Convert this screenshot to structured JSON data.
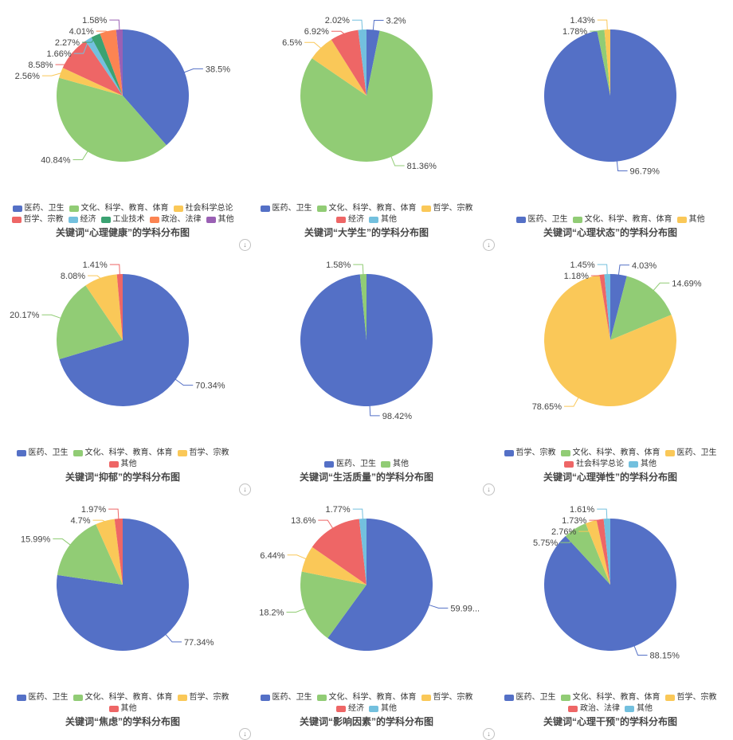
{
  "page": {
    "background": "#ffffff"
  },
  "palette": [
    "#5470c6",
    "#91cc75",
    "#fac858",
    "#ee6666",
    "#73c0de",
    "#3ba272",
    "#fc8452",
    "#9a60b4"
  ],
  "controls": {
    "download_icon": "↓"
  },
  "charts": [
    {
      "title": "关键词“心理健康”的学科分布图",
      "has_download_button": true,
      "chart_data": {
        "type": "pie",
        "series": [
          {
            "name": "医药、卫生",
            "value": 38.5,
            "label": "38.5%"
          },
          {
            "name": "文化、科学、教育、体育",
            "value": 40.84,
            "label": "40.84%"
          },
          {
            "name": "社会科学总论",
            "value": 2.56,
            "label": "2.56%"
          },
          {
            "name": "哲学、宗教",
            "value": 8.58,
            "label": "8.58%"
          },
          {
            "name": "经济",
            "value": 1.66,
            "label": "1.66%"
          },
          {
            "name": "工业技术",
            "value": 2.27,
            "label": "2.27%"
          },
          {
            "name": "政治、法律",
            "value": 4.01,
            "label": "4.01%"
          },
          {
            "name": "其他",
            "value": 1.58,
            "label": "1.58%"
          }
        ]
      }
    },
    {
      "title": "关键词“大学生”的学科分布图",
      "has_download_button": true,
      "chart_data": {
        "type": "pie",
        "series": [
          {
            "name": "医药、卫生",
            "value": 3.2,
            "label": "3.2%"
          },
          {
            "name": "文化、科学、教育、体育",
            "value": 81.36,
            "label": "81.36%"
          },
          {
            "name": "哲学、宗教",
            "value": 6.5,
            "label": "6.5%"
          },
          {
            "name": "经济",
            "value": 6.92,
            "label": "6.92%"
          },
          {
            "name": "其他",
            "value": 2.02,
            "label": "2.02%"
          }
        ]
      }
    },
    {
      "title": "关键词“心理状态”的学科分布图",
      "has_download_button": false,
      "chart_data": {
        "type": "pie",
        "series": [
          {
            "name": "医药、卫生",
            "value": 96.79,
            "label": "96.79%"
          },
          {
            "name": "文化、科学、教育、体育",
            "value": 1.78,
            "label": "1.78%"
          },
          {
            "name": "其他",
            "value": 1.43,
            "label": "1.43%"
          }
        ]
      }
    },
    {
      "title": "关键词“抑郁”的学科分布图",
      "has_download_button": true,
      "chart_data": {
        "type": "pie",
        "series": [
          {
            "name": "医药、卫生",
            "value": 70.34,
            "label": "70.34%"
          },
          {
            "name": "文化、科学、教育、体育",
            "value": 20.17,
            "label": "20.17%"
          },
          {
            "name": "哲学、宗教",
            "value": 8.08,
            "label": "8.08%"
          },
          {
            "name": "其他",
            "value": 1.41,
            "label": "1.41%"
          }
        ]
      }
    },
    {
      "title": "关键词“生活质量”的学科分布图",
      "has_download_button": true,
      "chart_data": {
        "type": "pie",
        "series": [
          {
            "name": "医药、卫生",
            "value": 98.42,
            "label": "98.42%"
          },
          {
            "name": "其他",
            "value": 1.58,
            "label": "1.58%"
          }
        ]
      }
    },
    {
      "title": "关键词“心理弹性”的学科分布图",
      "has_download_button": false,
      "chart_data": {
        "type": "pie",
        "series": [
          {
            "name": "哲学、宗教",
            "value": 4.03,
            "label": "4.03%"
          },
          {
            "name": "文化、科学、教育、体育",
            "value": 14.69,
            "label": "14.69%"
          },
          {
            "name": "医药、卫生",
            "value": 78.65,
            "label": "78.65%"
          },
          {
            "name": "社会科学总论",
            "value": 1.18,
            "label": "1.18%"
          },
          {
            "name": "其他",
            "value": 1.45,
            "label": "1.45%"
          }
        ]
      }
    },
    {
      "title": "关键词“焦虑”的学科分布图",
      "has_download_button": true,
      "chart_data": {
        "type": "pie",
        "series": [
          {
            "name": "医药、卫生",
            "value": 77.34,
            "label": "77.34%"
          },
          {
            "name": "文化、科学、教育、体育",
            "value": 15.99,
            "label": "15.99%"
          },
          {
            "name": "哲学、宗教",
            "value": 4.7,
            "label": "4.7%"
          },
          {
            "name": "其他",
            "value": 1.97,
            "label": "1.97%"
          }
        ]
      }
    },
    {
      "title": "关键词“影响因素”的学科分布图",
      "has_download_button": true,
      "chart_data": {
        "type": "pie",
        "series": [
          {
            "name": "医药、卫生",
            "value": 59.99,
            "label": "59.99..."
          },
          {
            "name": "文化、科学、教育、体育",
            "value": 18.2,
            "label": "18.2%"
          },
          {
            "name": "哲学、宗教",
            "value": 6.44,
            "label": "6.44%"
          },
          {
            "name": "经济",
            "value": 13.6,
            "label": "13.6%"
          },
          {
            "name": "其他",
            "value": 1.77,
            "label": "1.77%"
          }
        ]
      }
    },
    {
      "title": "关键词“心理干预”的学科分布图",
      "has_download_button": false,
      "chart_data": {
        "type": "pie",
        "series": [
          {
            "name": "医药、卫生",
            "value": 88.15,
            "label": "88.15%"
          },
          {
            "name": "文化、科学、教育、体育",
            "value": 5.75,
            "label": "5.75%"
          },
          {
            "name": "哲学、宗教",
            "value": 2.76,
            "label": "2.76%"
          },
          {
            "name": "政治、法律",
            "value": 1.73,
            "label": "1.73%"
          },
          {
            "name": "其他",
            "value": 1.61,
            "label": "1.61%"
          }
        ]
      }
    }
  ]
}
